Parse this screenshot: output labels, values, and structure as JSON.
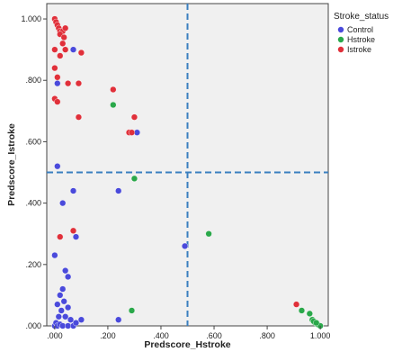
{
  "chart_data": {
    "type": "scatter",
    "xlabel": "Predscore_Hstroke",
    "ylabel": "Predscore_Istroke",
    "xlim": [
      -0.03,
      1.03
    ],
    "ylim": [
      0.0,
      1.05
    ],
    "x_ticks": [
      ".000",
      ".200",
      ".400",
      ".600",
      ".800",
      "1.000"
    ],
    "y_ticks": [
      ".000",
      ".200",
      ".400",
      ".600",
      ".800",
      "1.000"
    ],
    "reference_lines": {
      "x": 0.5,
      "y": 0.5,
      "style": "dashed",
      "color": "#3a7fbf"
    },
    "plot_background": "#f0f0f0",
    "grid": false,
    "legend": {
      "title": "Stroke_status",
      "placement": "top-right, outside plot"
    },
    "series": [
      {
        "name": "Control",
        "color": "#4a4adb",
        "points": [
          [
            0.0,
            0.0
          ],
          [
            0.005,
            0.01
          ],
          [
            0.01,
            0.0
          ],
          [
            0.015,
            0.03
          ],
          [
            0.02,
            0.005
          ],
          [
            0.025,
            0.05
          ],
          [
            0.03,
            0.0
          ],
          [
            0.035,
            0.08
          ],
          [
            0.04,
            0.03
          ],
          [
            0.05,
            0.0
          ],
          [
            0.05,
            0.06
          ],
          [
            0.06,
            0.02
          ],
          [
            0.07,
            0.0
          ],
          [
            0.08,
            0.01
          ],
          [
            0.1,
            0.02
          ],
          [
            0.01,
            0.07
          ],
          [
            0.02,
            0.1
          ],
          [
            0.03,
            0.12
          ],
          [
            0.04,
            0.18
          ],
          [
            0.05,
            0.16
          ],
          [
            0.0,
            0.23
          ],
          [
            0.08,
            0.29
          ],
          [
            0.24,
            0.02
          ],
          [
            0.24,
            0.44
          ],
          [
            0.07,
            0.44
          ],
          [
            0.03,
            0.4
          ],
          [
            0.01,
            0.52
          ],
          [
            0.01,
            0.79
          ],
          [
            0.07,
            0.9
          ],
          [
            0.31,
            0.63
          ],
          [
            0.49,
            0.26
          ],
          [
            1.0,
            0.0
          ]
        ]
      },
      {
        "name": "Hstroke",
        "color": "#2aa84a",
        "points": [
          [
            0.22,
            0.72
          ],
          [
            0.3,
            0.48
          ],
          [
            0.58,
            0.3
          ],
          [
            0.29,
            0.05
          ],
          [
            0.93,
            0.05
          ],
          [
            0.96,
            0.04
          ],
          [
            0.97,
            0.02
          ],
          [
            0.98,
            0.01
          ],
          [
            0.99,
            0.005
          ],
          [
            1.0,
            0.0
          ],
          [
            0.975,
            0.015
          ],
          [
            0.985,
            0.01
          ]
        ]
      },
      {
        "name": "Istroke",
        "color": "#e0303a",
        "points": [
          [
            0.0,
            1.0
          ],
          [
            0.005,
            0.99
          ],
          [
            0.01,
            0.98
          ],
          [
            0.015,
            0.97
          ],
          [
            0.02,
            0.96
          ],
          [
            0.03,
            0.96
          ],
          [
            0.04,
            0.97
          ],
          [
            0.02,
            0.95
          ],
          [
            0.035,
            0.94
          ],
          [
            0.0,
            0.9
          ],
          [
            0.02,
            0.88
          ],
          [
            0.03,
            0.92
          ],
          [
            0.04,
            0.9
          ],
          [
            0.1,
            0.89
          ],
          [
            0.05,
            0.79
          ],
          [
            0.09,
            0.79
          ],
          [
            0.0,
            0.84
          ],
          [
            0.01,
            0.81
          ],
          [
            0.0,
            0.74
          ],
          [
            0.01,
            0.73
          ],
          [
            0.09,
            0.68
          ],
          [
            0.22,
            0.77
          ],
          [
            0.3,
            0.68
          ],
          [
            0.28,
            0.63
          ],
          [
            0.29,
            0.63
          ],
          [
            0.07,
            0.31
          ],
          [
            0.02,
            0.29
          ],
          [
            0.91,
            0.07
          ]
        ]
      }
    ]
  }
}
